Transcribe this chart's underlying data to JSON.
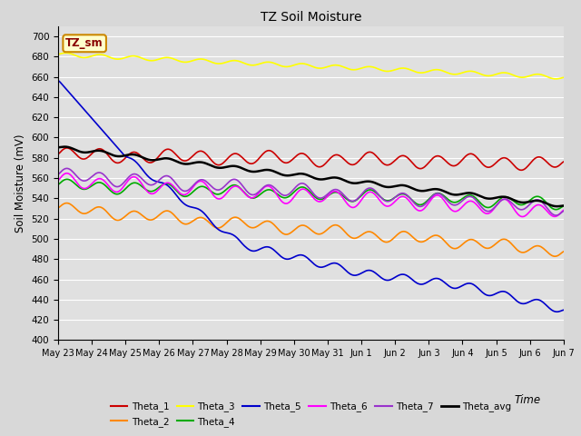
{
  "title": "TZ Soil Moisture",
  "ylabel": "Soil Moisture (mV)",
  "xlabel": "Time",
  "ylim": [
    400,
    710
  ],
  "yticks": [
    400,
    420,
    440,
    460,
    480,
    500,
    520,
    540,
    560,
    580,
    600,
    620,
    640,
    660,
    680,
    700
  ],
  "bg_color": "#d8d8d8",
  "plot_bg_color": "#e0e0e0",
  "grid_color": "#ffffff",
  "annotation_text": "TZ_sm",
  "annotation_bg": "#ffffcc",
  "annotation_border": "#cc8800",
  "annotation_text_color": "#880000",
  "series": {
    "Theta_1": {
      "color": "#cc0000",
      "lw": 1.2
    },
    "Theta_2": {
      "color": "#ff8800",
      "lw": 1.2
    },
    "Theta_3": {
      "color": "#ffff00",
      "lw": 1.2
    },
    "Theta_4": {
      "color": "#00aa00",
      "lw": 1.2
    },
    "Theta_5": {
      "color": "#0000cc",
      "lw": 1.2
    },
    "Theta_6": {
      "color": "#ff00ff",
      "lw": 1.2
    },
    "Theta_7": {
      "color": "#9933cc",
      "lw": 1.2
    },
    "Theta_avg": {
      "color": "#000000",
      "lw": 1.8
    }
  },
  "x_tick_labels": [
    "May 23",
    "May 24",
    "May 25",
    "May 26",
    "May 27",
    "May 28",
    "May 29",
    "May 30",
    "May 31",
    "Jun 1",
    "Jun 2",
    "Jun 3",
    "Jun 4",
    "Jun 5",
    "Jun 6",
    "Jun 7"
  ],
  "n_points": 500
}
